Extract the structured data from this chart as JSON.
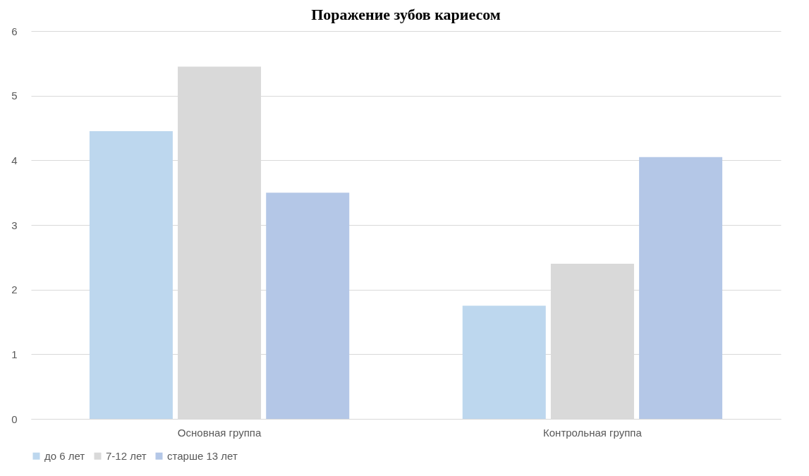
{
  "chart_data": {
    "type": "bar",
    "title": "Поражение зубов кариесом",
    "categories": [
      "Основная группа",
      "Контрольная группа"
    ],
    "series": [
      {
        "name": "до 6 лет",
        "color": "#bdd7ee",
        "values": [
          4.45,
          1.75
        ]
      },
      {
        "name": "7-12 лет",
        "color": "#d9d9d9",
        "values": [
          5.45,
          2.4
        ]
      },
      {
        "name": "старше 13 лет",
        "color": "#b4c7e7",
        "values": [
          3.5,
          4.05
        ]
      }
    ],
    "ylim": [
      0,
      6
    ],
    "yticks": [
      0,
      1,
      2,
      3,
      4,
      5,
      6
    ],
    "grid": "y",
    "legend": "bottom"
  }
}
